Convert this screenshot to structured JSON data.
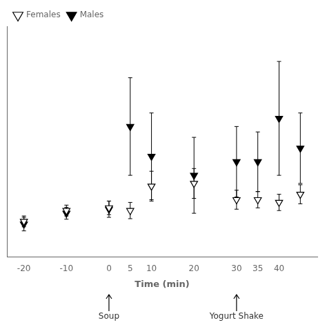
{
  "chart_data": {
    "type": "scatter",
    "xlabel": "Time (min)",
    "x": [
      -20,
      -10,
      0,
      5,
      10,
      20,
      30,
      35,
      40,
      45
    ],
    "series": [
      {
        "name": "Females",
        "color": "#000000",
        "marker": "triangle-down-open",
        "values": [
          1.3,
          1.7,
          1.8,
          1.7,
          2.6,
          2.7,
          2.1,
          2.1,
          2.0,
          2.3
        ],
        "errors": [
          0.2,
          0.2,
          0.25,
          0.3,
          0.55,
          0.55,
          0.35,
          0.3,
          0.3,
          0.35
        ]
      },
      {
        "name": "Males",
        "color": "#000000",
        "marker": "triangle-down",
        "values": [
          1.2,
          1.6,
          1.75,
          4.8,
          3.7,
          3.0,
          3.5,
          3.5,
          5.1,
          4.0
        ],
        "errors": [
          0.25,
          0.22,
          0.3,
          1.8,
          1.6,
          1.4,
          1.3,
          1.1,
          2.1,
          1.3
        ]
      }
    ],
    "xlim": [
      -24,
      49
    ],
    "xticks": [
      -20,
      -10,
      0,
      5,
      10,
      20,
      30,
      35,
      40
    ],
    "ylim": [
      0,
      8.5
    ],
    "yticks": [],
    "tick_labels": "x",
    "grid": false,
    "legend": "upper left",
    "annotations": [
      {
        "x": 0,
        "text": "Soup"
      },
      {
        "x": 30,
        "text": "Yogurt Shake"
      }
    ]
  }
}
